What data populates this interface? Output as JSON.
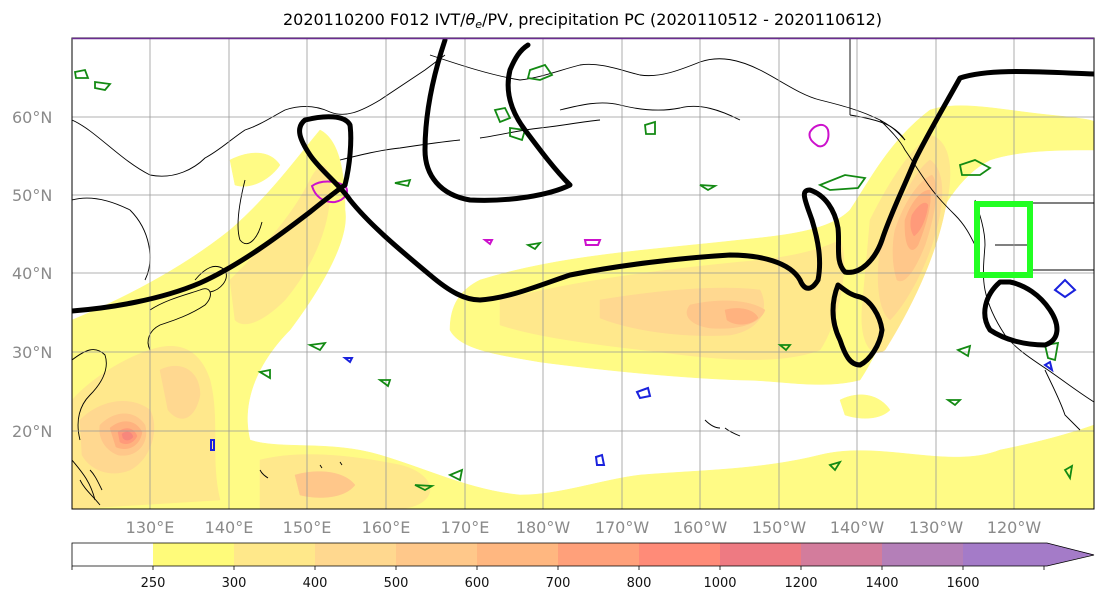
{
  "title": {
    "prefix": "2020110200 F012 IVT/",
    "theta_symbol": "θ",
    "theta_sub": "e",
    "suffix": "/PV, precipitation PC (2020110512 - 2020110612)"
  },
  "map": {
    "lat_labels": [
      "60°N",
      "50°N",
      "40°N",
      "30°N",
      "20°N"
    ],
    "lon_labels": [
      "130°E",
      "140°E",
      "150°E",
      "160°E",
      "170°E",
      "180°W",
      "170°W",
      "160°W",
      "150°W",
      "140°W",
      "130°W",
      "120°W"
    ],
    "fill_colors": {
      "c250": "#fffb85",
      "c300": "#ffe88c",
      "c400": "#ffd890",
      "c500": "#ffc78a",
      "c600": "#ffb27f",
      "c700": "#ff9a7a",
      "c800": "#f7877c",
      "c1000": "#e47684"
    },
    "contour_color": "#000000",
    "green_contour_color": "#138a13",
    "magenta_contour_color": "#cc11cc",
    "blue_contour_color": "#1a22dd",
    "highlight_box_color": "#22ff22"
  },
  "colorbar": {
    "ticks": [
      "250",
      "300",
      "400",
      "500",
      "600",
      "700",
      "800",
      "1000",
      "1200",
      "1400",
      "1600"
    ],
    "colors": [
      "#ffffff",
      "#fffb7a",
      "#ffe88a",
      "#ffd88f",
      "#ffc88a",
      "#ffb780",
      "#ffa07a",
      "#ff8b78",
      "#ee7a82",
      "#d37c9c",
      "#b47fb8",
      "#a47bc8"
    ]
  }
}
